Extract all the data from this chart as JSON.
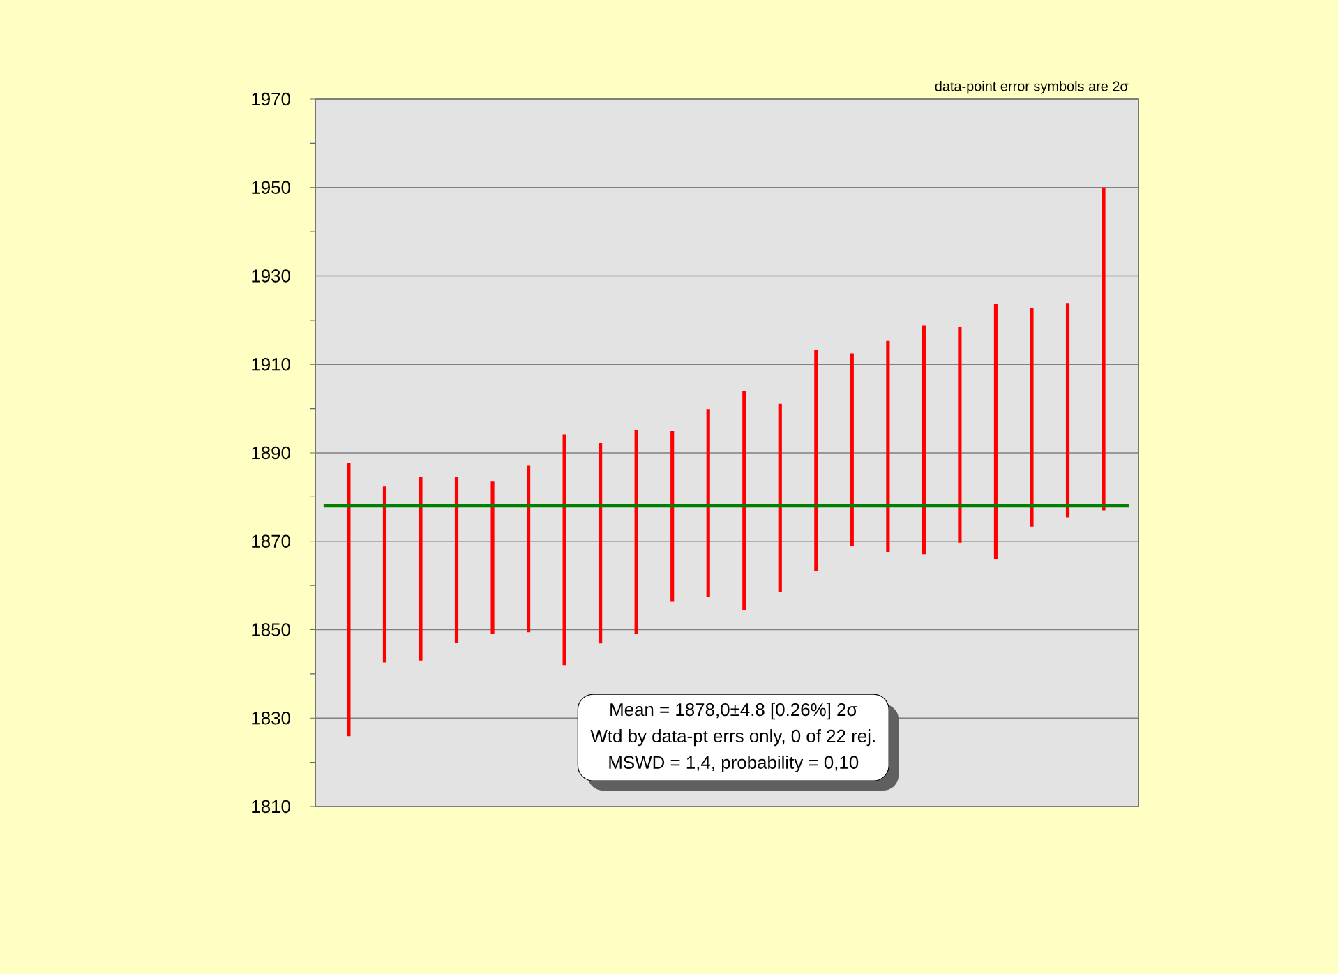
{
  "chart_data": {
    "type": "bar",
    "categories": [
      null,
      null,
      null,
      null,
      null,
      null,
      null,
      null,
      null,
      null,
      null,
      null,
      null,
      null,
      null,
      null,
      null,
      null,
      null,
      null,
      null,
      null
    ],
    "base": [
      1825.9,
      1842.6,
      1843.0,
      1847.0,
      1849.0,
      1849.4,
      1842.0,
      1846.9,
      1849.1,
      1856.3,
      1857.4,
      1854.4,
      1858.6,
      1863.2,
      1869.0,
      1867.6,
      1867.1,
      1869.7,
      1866.0,
      1873.3,
      1875.4,
      1877.0
    ],
    "values": [
      61.9,
      39.8,
      41.6,
      37.6,
      34.5,
      37.7,
      52.2,
      45.3,
      46.1,
      38.6,
      42.5,
      49.6,
      42.5,
      50.0,
      43.5,
      47.7,
      51.7,
      48.8,
      57.7,
      49.5,
      48.5,
      73.0
    ],
    "color": "#ff0000",
    "ylim": [
      1810,
      1970
    ],
    "yticks": [
      1810,
      {
        "value": 1820,
        "label": null
      },
      1830,
      {
        "value": 1840,
        "label": null
      },
      1850,
      {
        "value": 1860,
        "label": null
      },
      1870,
      {
        "value": 1880,
        "label": null
      },
      1890,
      {
        "value": 1900,
        "label": null
      },
      1910,
      {
        "value": 1920,
        "label": null
      },
      1930,
      {
        "value": 1940,
        "label": null
      },
      1950,
      {
        "value": 1960,
        "label": null
      },
      1970
    ],
    "grid": "y",
    "tick_labels": "y",
    "ref_lines": [
      {
        "axis": "y",
        "value": 1878,
        "color": "#008000"
      }
    ],
    "annotations": [
      "data-point error symbols are 2σ",
      "Mean = 1878,0±4.8  [0.26%]  2σ",
      "Wtd by data-pt errs only, 0 of 22 rej.",
      "MSWD = 1,4, probability = 0,10"
    ]
  }
}
